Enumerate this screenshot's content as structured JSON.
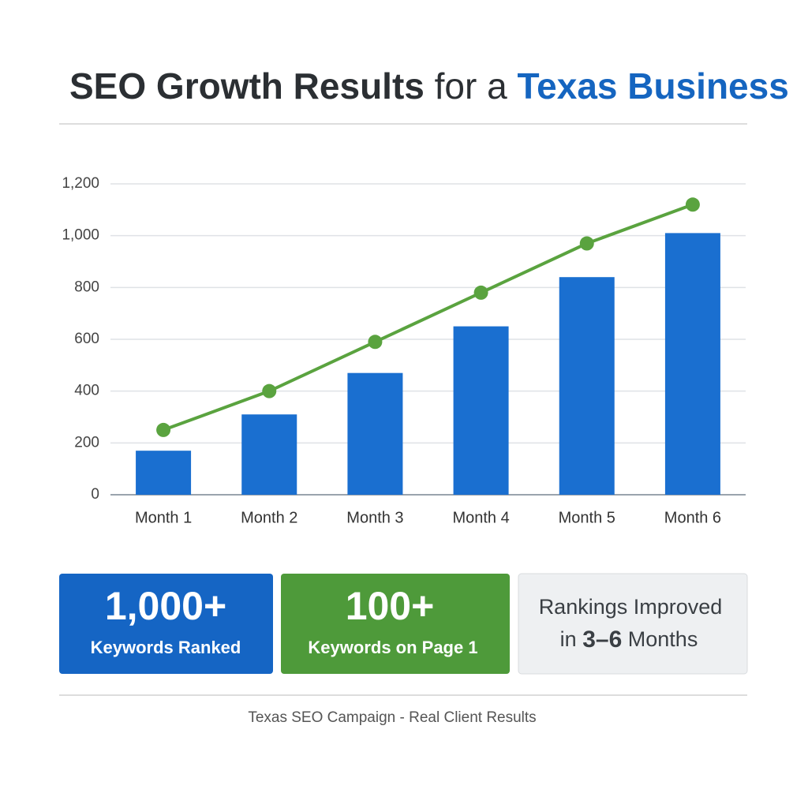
{
  "header": {
    "title_lead": "SEO Growth Results",
    "title_mid": "for a",
    "title_accent": "Texas Business"
  },
  "chart_data": {
    "type": "bar",
    "categories": [
      "Month 1",
      "Month 2",
      "Month 3",
      "Month 4",
      "Month 5",
      "Month 6"
    ],
    "series": [
      {
        "type": "bar",
        "color": "#1a6fd0",
        "values": [
          170,
          310,
          470,
          650,
          840,
          1010
        ]
      },
      {
        "type": "line",
        "color": "#5aa33f",
        "values": [
          250,
          400,
          590,
          780,
          970,
          1120
        ]
      }
    ],
    "ylim": [
      0,
      1200
    ],
    "yticks": [
      0,
      200,
      400,
      600,
      800,
      {
        "value": 1000,
        "label": "1,000"
      },
      {
        "value": 1200,
        "label": "1,200"
      }
    ],
    "grid": true
  },
  "cards": [
    {
      "value": "1,000+",
      "label": "Keywords Ranked"
    },
    {
      "value": "100+",
      "label": "Keywords on Page 1"
    },
    {
      "line1": "Rankings Improved",
      "line2": [
        "in",
        "3–6",
        "Months"
      ]
    }
  ],
  "footer": "Texas SEO Campaign - Real Client Results"
}
